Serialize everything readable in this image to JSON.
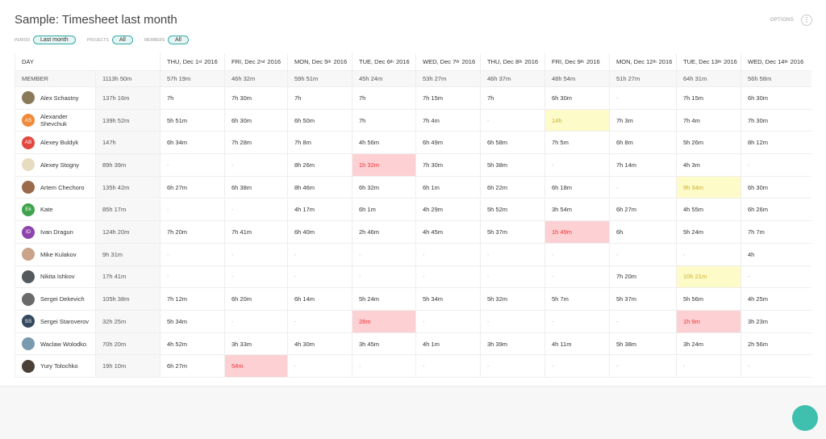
{
  "header": {
    "title": "Sample: Timesheet last month",
    "options": "OPTIONS"
  },
  "filters": [
    {
      "label": "PERIOD",
      "value": "Last month"
    },
    {
      "label": "PROJECTS",
      "value": "All"
    },
    {
      "label": "MEMBERS",
      "value": "All"
    }
  ],
  "table": {
    "day_label": "DAY",
    "member_label": "MEMBER",
    "grand_total": "1113h 50m",
    "days": [
      {
        "text": "THU, Dec 1",
        "sup": "st",
        "year": "2016"
      },
      {
        "text": "FRI, Dec 2",
        "sup": "nd",
        "year": "2016"
      },
      {
        "text": "MON, Dec 5",
        "sup": "th",
        "year": "2016"
      },
      {
        "text": "TUE, Dec 6",
        "sup": "th",
        "year": "2016"
      },
      {
        "text": "WED, Dec 7",
        "sup": "th",
        "year": "2016"
      },
      {
        "text": "THU, Dec 8",
        "sup": "th",
        "year": "2016"
      },
      {
        "text": "FRI, Dec 9",
        "sup": "th",
        "year": "2016"
      },
      {
        "text": "MON, Dec 12",
        "sup": "th",
        "year": "2016"
      },
      {
        "text": "TUE, Dec 13",
        "sup": "th",
        "year": "2016"
      },
      {
        "text": "WED, Dec 14",
        "sup": "th",
        "year": "2016"
      }
    ],
    "day_totals": [
      "57h 19m",
      "46h 32m",
      "59h 51m",
      "45h 24m",
      "53h 27m",
      "46h 37m",
      "48h 54m",
      "51h 27m",
      "64h 31m",
      "56h 58m"
    ],
    "rows": [
      {
        "name": "Alex Schastny",
        "avatar_color": "#8a7a5a",
        "total": "137h 16m",
        "cells": [
          "7h",
          "7h 30m",
          "7h",
          "7h",
          "7h 15m",
          "7h",
          "6h 30m",
          "-",
          "7h 15m",
          "6h 30m"
        ],
        "flags": [
          null,
          null,
          null,
          null,
          null,
          null,
          null,
          null,
          null,
          null
        ]
      },
      {
        "name": "Alexander Shevchuk",
        "initials": "AS",
        "avatar_color": "#f08a3c",
        "total": "139h 52m",
        "cells": [
          "5h 51m",
          "6h 30m",
          "6h 50m",
          "7h",
          "7h 4m",
          "-",
          "14h",
          "7h 3m",
          "7h 4m",
          "7h 30m"
        ],
        "flags": [
          null,
          null,
          null,
          null,
          null,
          null,
          "yellow",
          null,
          null,
          null
        ]
      },
      {
        "name": "Alexey Buldyk",
        "initials": "AB",
        "avatar_color": "#e2473f",
        "total": "147h",
        "cells": [
          "6h 34m",
          "7h 28m",
          "7h 8m",
          "4h 56m",
          "6h 49m",
          "6h 58m",
          "7h 5m",
          "6h 8m",
          "5h 26m",
          "8h 12m"
        ],
        "flags": [
          null,
          null,
          null,
          null,
          null,
          null,
          null,
          null,
          null,
          null
        ]
      },
      {
        "name": "Alexey Stogny",
        "avatar_color": "#e8dcc0",
        "total": "89h 39m",
        "cells": [
          "-",
          "-",
          "8h 26m",
          "1h 32m",
          "7h 30m",
          "5h 38m",
          "-",
          "7h 14m",
          "4h 3m",
          "-"
        ],
        "flags": [
          null,
          null,
          null,
          "red",
          null,
          null,
          null,
          null,
          null,
          null
        ]
      },
      {
        "name": "Artem Chechoro",
        "avatar_color": "#9a6a4a",
        "total": "135h 42m",
        "cells": [
          "6h 27m",
          "6h 38m",
          "8h 46m",
          "6h 32m",
          "6h 1m",
          "6h 22m",
          "6h 18m",
          "-",
          "9h 34m",
          "6h 30m"
        ],
        "flags": [
          null,
          null,
          null,
          null,
          null,
          null,
          null,
          null,
          "yellow",
          null
        ]
      },
      {
        "name": "Kate",
        "initials": "Ek",
        "avatar_color": "#3fa34d",
        "total": "85h 17m",
        "cells": [
          "-",
          "-",
          "4h 17m",
          "6h 1m",
          "4h 29m",
          "5h 52m",
          "3h 54m",
          "6h 27m",
          "4h 55m",
          "6h 26m"
        ],
        "flags": [
          null,
          null,
          null,
          null,
          null,
          null,
          null,
          null,
          null,
          null
        ]
      },
      {
        "name": "Ivan Dragun",
        "initials": "ID",
        "avatar_color": "#8e44ad",
        "total": "124h 20m",
        "cells": [
          "7h 20m",
          "7h 41m",
          "6h 40m",
          "2h 46m",
          "4h 45m",
          "5h 37m",
          "1h 49m",
          "6h",
          "5h 24m",
          "7h 7m"
        ],
        "flags": [
          null,
          null,
          null,
          null,
          null,
          null,
          "red",
          null,
          null,
          null
        ]
      },
      {
        "name": "Mike Kulakov",
        "avatar_color": "#c9a48a",
        "total": "9h 31m",
        "cells": [
          "-",
          "-",
          "-",
          "-",
          "-",
          "-",
          "-",
          "-",
          "-",
          "4h"
        ],
        "flags": [
          null,
          null,
          null,
          null,
          null,
          null,
          null,
          null,
          null,
          null
        ]
      },
      {
        "name": "Nikita Ishkov",
        "avatar_color": "#555a5e",
        "total": "17h 41m",
        "cells": [
          "-",
          "-",
          "-",
          "-",
          "-",
          "-",
          "-",
          "7h 20m",
          "10h 21m",
          "-"
        ],
        "flags": [
          null,
          null,
          null,
          null,
          null,
          null,
          null,
          null,
          "yellow",
          null
        ]
      },
      {
        "name": "Sergei Dekevich",
        "avatar_color": "#6a6a6a",
        "total": "105h 38m",
        "cells": [
          "7h 12m",
          "6h 20m",
          "6h 14m",
          "5h 24m",
          "5h 34m",
          "5h 32m",
          "5h 7m",
          "5h 37m",
          "5h 56m",
          "4h 25m"
        ],
        "flags": [
          null,
          null,
          null,
          null,
          null,
          null,
          null,
          null,
          null,
          null
        ]
      },
      {
        "name": "Sergei Staroverov",
        "initials": "SS",
        "avatar_color": "#34495e",
        "total": "32h 25m",
        "cells": [
          "5h 34m",
          "-",
          "-",
          "28m",
          "-",
          "-",
          "-",
          "-",
          "1h 9m",
          "3h 23m"
        ],
        "flags": [
          null,
          null,
          null,
          "red",
          null,
          null,
          null,
          null,
          "red",
          null
        ]
      },
      {
        "name": "Waclaw Wolodko",
        "avatar_color": "#7a9ab0",
        "total": "70h 20m",
        "cells": [
          "4h 52m",
          "3h 33m",
          "4h 30m",
          "3h 45m",
          "4h 1m",
          "3h 39m",
          "4h 11m",
          "5h 38m",
          "3h 24m",
          "2h 56m"
        ],
        "flags": [
          null,
          null,
          null,
          null,
          null,
          null,
          null,
          null,
          null,
          null
        ]
      },
      {
        "name": "Yury Tolochko",
        "avatar_color": "#4a4038",
        "total": "19h 10m",
        "cells": [
          "6h 27m",
          "54m",
          "-",
          "-",
          "-",
          "-",
          "-",
          "-",
          "-",
          "-"
        ],
        "flags": [
          null,
          "red",
          null,
          null,
          null,
          null,
          null,
          null,
          null,
          null
        ]
      }
    ]
  }
}
